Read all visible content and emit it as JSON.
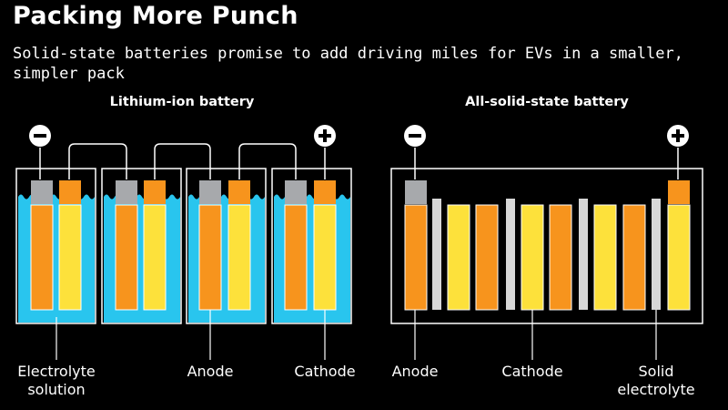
{
  "title": "Packing More Punch",
  "subtitle": "Solid-state batteries promise to add driving miles for EVs in a smaller, simpler pack",
  "panels": {
    "left": {
      "heading": "Lithium-ion battery",
      "labels": {
        "electrolyte_line1": "Electrolyte",
        "electrolyte_line2": "solution",
        "anode": "Anode",
        "cathode": "Cathode"
      }
    },
    "right": {
      "heading": "All-solid-state battery",
      "labels": {
        "anode": "Anode",
        "cathode": "Cathode",
        "solid_line1": "Solid",
        "solid_line2": "electrolyte"
      }
    }
  },
  "colors": {
    "background": "#000000",
    "electrolyte": "#29c5ee",
    "anode": "#f7941d",
    "cathode": "#fde13b",
    "separator": "#d7d7d7",
    "terminal": "#a7a9ac",
    "outline": "#ffffff"
  },
  "icons": {
    "negative": "minus-circle-icon",
    "positive": "plus-circle-icon"
  }
}
